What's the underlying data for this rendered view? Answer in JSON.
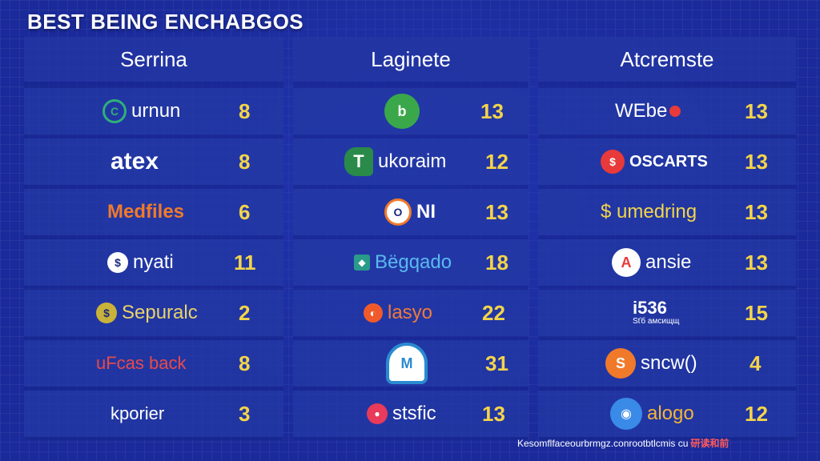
{
  "title": "BEST BEING ENCHABGOS",
  "footer": {
    "text": "Kesomflfaceourbrmgz.conrootbtlcmis cu",
    "mark": "研读和前"
  },
  "columns": [
    {
      "header": "Serrina",
      "rows": [
        {
          "brand": "urnun",
          "logo": "C",
          "logo_color": "#2fb07a",
          "brand_color": "#ffffff",
          "value": "8"
        },
        {
          "brand": "atex",
          "logo": "",
          "logo_color": "",
          "brand_color": "#ffffff",
          "value": "8"
        },
        {
          "brand": "Medfiles",
          "logo": "",
          "logo_color": "",
          "brand_color": "#f07a2a",
          "value": "6"
        },
        {
          "brand": "nyati",
          "logo": "$",
          "logo_color": "#1b2a7a",
          "brand_color": "#ffffff",
          "value": "11"
        },
        {
          "brand": "Sepuralc",
          "logo": "$",
          "logo_color": "#c9b23a",
          "brand_color": "#e9d36a",
          "value": "2"
        },
        {
          "brand": "uFcas back",
          "logo": "",
          "logo_color": "",
          "brand_color": "#e84a4a",
          "value": "8"
        },
        {
          "brand": "kporier",
          "logo": "",
          "logo_color": "",
          "brand_color": "#ffffff",
          "value": "3"
        }
      ]
    },
    {
      "header": "Laginete",
      "rows": [
        {
          "brand": "",
          "logo": "b",
          "logo_color": "#3aa84a",
          "brand_color": "#ffffff",
          "value": "13"
        },
        {
          "brand": "ukoraim",
          "logo": "T",
          "logo_color": "#2a8a4a",
          "brand_color": "#ffffff",
          "value": "12"
        },
        {
          "brand": "NI",
          "logo": "O",
          "logo_color": "#f07a2a",
          "brand_color": "#ffffff",
          "value": "13"
        },
        {
          "brand": "Bëgqado",
          "logo": "◆",
          "logo_color": "#2a9a8a",
          "brand_color": "#5ab8f0",
          "value": "18"
        },
        {
          "brand": "lasyo",
          "logo": "◐",
          "logo_color": "#f05a2a",
          "brand_color": "#f07a3a",
          "value": "22"
        },
        {
          "brand": "",
          "logo": "M",
          "logo_color": "#2a8ad0",
          "brand_color": "#ffffff",
          "value": "31"
        },
        {
          "brand": "stsfic",
          "logo": "●",
          "logo_color": "#e83a5a",
          "brand_color": "#ffffff",
          "value": "13"
        }
      ]
    },
    {
      "header": "Atcremste",
      "rows": [
        {
          "brand": "WEbe",
          "logo": "",
          "logo_color": "#e83a3a",
          "brand_color": "#ffffff",
          "value": "13"
        },
        {
          "brand": "OSCARTS",
          "logo": "$",
          "logo_color": "#e83a3a",
          "brand_color": "#ffffff",
          "value": "13"
        },
        {
          "brand": "$ umedring",
          "logo": "",
          "logo_color": "",
          "brand_color": "#f4d44a",
          "value": "13"
        },
        {
          "brand": "ansie",
          "logo": "A",
          "logo_color": "#ffffff",
          "brand_color": "#ffffff",
          "value": "13"
        },
        {
          "brand": "i536",
          "sub": "Sťб амсищщ",
          "logo": "",
          "logo_color": "",
          "brand_color": "#ffffff",
          "value": "15"
        },
        {
          "brand": "sncw()",
          "logo": "S",
          "logo_color": "#f07a2a",
          "brand_color": "#ffffff",
          "value": "4"
        },
        {
          "brand": "alogo",
          "logo": "◉",
          "logo_color": "#3a8ae8",
          "brand_color": "#f4b43a",
          "value": "12"
        }
      ]
    }
  ]
}
